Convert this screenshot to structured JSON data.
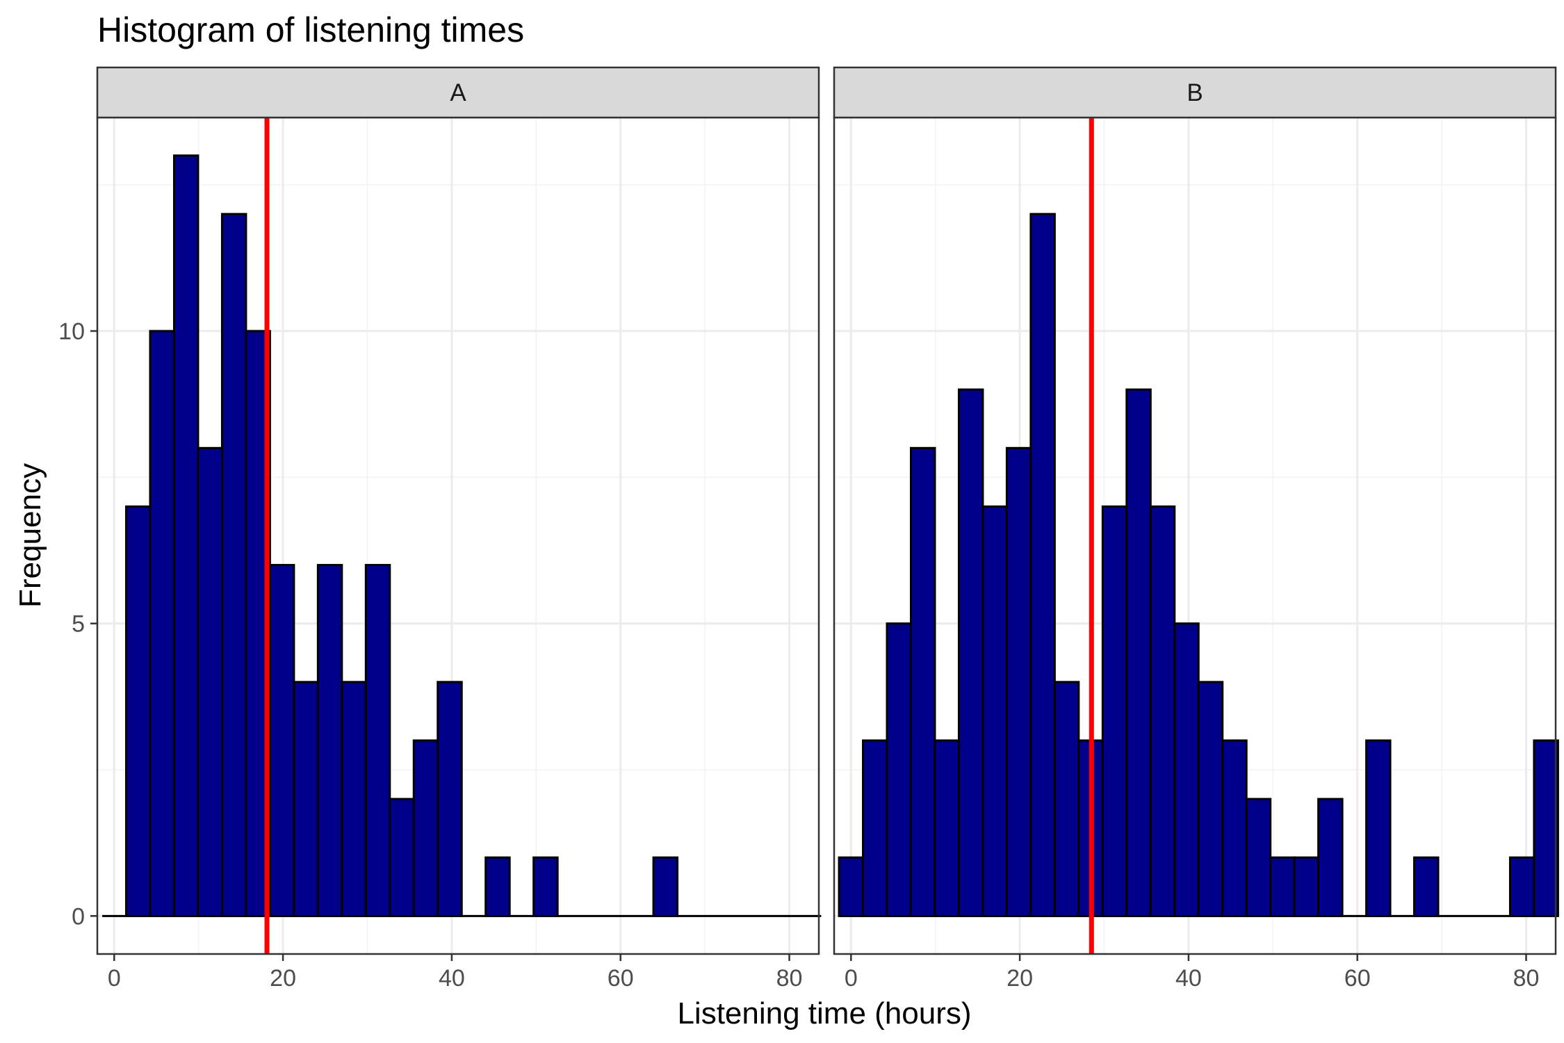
{
  "chart_data": {
    "type": "bar",
    "title": "Histogram of listening times",
    "xlabel": "Listening time (hours)",
    "ylabel": "Frequency",
    "xlim": [
      -2,
      83.5
    ],
    "ylim": [
      -0.65,
      13.65
    ],
    "x_ticks": [
      0,
      20,
      40,
      60,
      80
    ],
    "y_ticks": [
      0,
      5,
      10
    ],
    "grid": true,
    "bin_start": -1.42,
    "bin_width": 2.84,
    "bar_color": "#00008B",
    "bar_outline": "#000000",
    "line_color": "#FF0000",
    "panels": [
      {
        "name": "A",
        "mean_line": 18.1,
        "counts": [
          0,
          7,
          10,
          13,
          8,
          12,
          10,
          6,
          4,
          6,
          4,
          6,
          2,
          3,
          4,
          0,
          1,
          0,
          1,
          0,
          0,
          0,
          0,
          1,
          0,
          0,
          0,
          0,
          0,
          0
        ]
      },
      {
        "name": "B",
        "mean_line": 28.5,
        "counts": [
          1,
          3,
          5,
          8,
          3,
          9,
          7,
          8,
          12,
          4,
          3,
          7,
          9,
          7,
          5,
          4,
          3,
          2,
          1,
          1,
          2,
          0,
          3,
          0,
          1,
          0,
          0,
          0,
          1,
          3
        ]
      }
    ]
  }
}
